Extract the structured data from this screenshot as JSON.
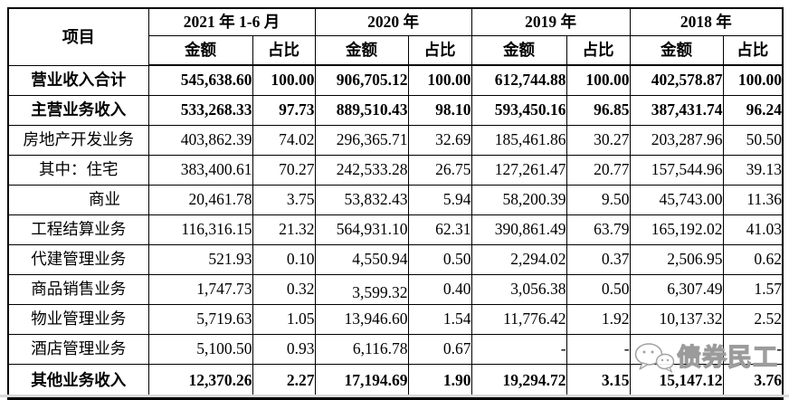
{
  "table": {
    "corner_label": "项目",
    "periods": [
      "2021 年 1-6 月",
      "2020 年",
      "2019 年",
      "2018 年"
    ],
    "sub_labels": {
      "amount": "金额",
      "ratio": "占比"
    },
    "rows": [
      {
        "label": "营业收入合计",
        "bold": true,
        "indent": false,
        "values": [
          "545,638.60",
          "100.00",
          "906,705.12",
          "100.00",
          "612,744.88",
          "100.00",
          "402,578.87",
          "100.00"
        ]
      },
      {
        "label": "主营业务收入",
        "bold": true,
        "indent": false,
        "values": [
          "533,268.33",
          "97.73",
          "889,510.43",
          "98.10",
          "593,450.16",
          "96.85",
          "387,431.74",
          "96.24"
        ]
      },
      {
        "label": "房地产开发业务",
        "bold": false,
        "indent": false,
        "values": [
          "403,862.39",
          "74.02",
          "296,365.71",
          "32.69",
          "185,461.86",
          "30.27",
          "203,287.96",
          "50.50"
        ]
      },
      {
        "label": "其中：住宅",
        "bold": false,
        "indent": false,
        "values": [
          "383,400.61",
          "70.27",
          "242,533.28",
          "26.75",
          "127,261.47",
          "20.77",
          "157,544.96",
          "39.13"
        ]
      },
      {
        "label": "商业",
        "bold": false,
        "indent": true,
        "values": [
          "20,461.78",
          "3.75",
          "53,832.43",
          "5.94",
          "58,200.39",
          "9.50",
          "45,743.00",
          "11.36"
        ]
      },
      {
        "label": "工程结算业务",
        "bold": false,
        "indent": false,
        "values": [
          "116,316.15",
          "21.32",
          "564,931.10",
          "62.31",
          "390,861.49",
          "63.79",
          "165,192.02",
          "41.03"
        ]
      },
      {
        "label": "代建管理业务",
        "bold": false,
        "indent": false,
        "values": [
          "521.93",
          "0.10",
          "4,550.94",
          "0.50",
          "2,294.02",
          "0.37",
          "2,506.95",
          "0.62"
        ]
      },
      {
        "label": "商品销售业务",
        "bold": false,
        "indent": false,
        "values": [
          "1,747.73",
          "0.32",
          "3,599.32",
          "0.40",
          "3,056.38",
          "0.50",
          "6,307.49",
          "1.57"
        ]
      },
      {
        "label": "物业管理业务",
        "bold": false,
        "indent": false,
        "values": [
          "5,719.63",
          "1.05",
          "13,946.60",
          "1.54",
          "11,776.42",
          "1.92",
          "10,137.32",
          "2.52"
        ]
      },
      {
        "label": "酒店管理业务",
        "bold": false,
        "indent": false,
        "values": [
          "5,100.50",
          "0.93",
          "6,116.78",
          "0.67",
          "-",
          "-",
          "-",
          "-"
        ]
      },
      {
        "label": "其他业务收入",
        "bold": true,
        "indent": false,
        "values": [
          "12,370.26",
          "2.27",
          "17,194.69",
          "1.90",
          "19,294.72",
          "3.15",
          "15,147.12",
          "3.76"
        ]
      }
    ]
  },
  "watermark": {
    "icon": "wechat-chat-bubbles-icon",
    "text": "债券民工"
  },
  "colors": {
    "border": "#000000",
    "text": "#000000",
    "watermark": "#9b9b9b",
    "bottom_strip": "#d9d9d9"
  }
}
